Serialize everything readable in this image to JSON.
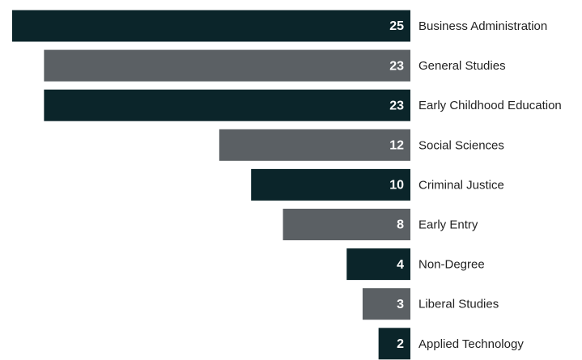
{
  "chart_data": {
    "type": "bar",
    "orientation": "horizontal",
    "categories": [
      "Business Administration",
      "General Studies",
      "Early Childhood Education",
      "Social Sciences",
      "Criminal Justice",
      "Early Entry",
      "Non-Degree",
      "Liberal Studies",
      "Applied Technology"
    ],
    "values": [
      25,
      23,
      23,
      12,
      10,
      8,
      4,
      3,
      2
    ],
    "colors": [
      "#0b252a",
      "#5b6064",
      "#0b252a",
      "#5b6064",
      "#0b252a",
      "#5b6064",
      "#0b252a",
      "#5b6064",
      "#0b252a"
    ]
  }
}
